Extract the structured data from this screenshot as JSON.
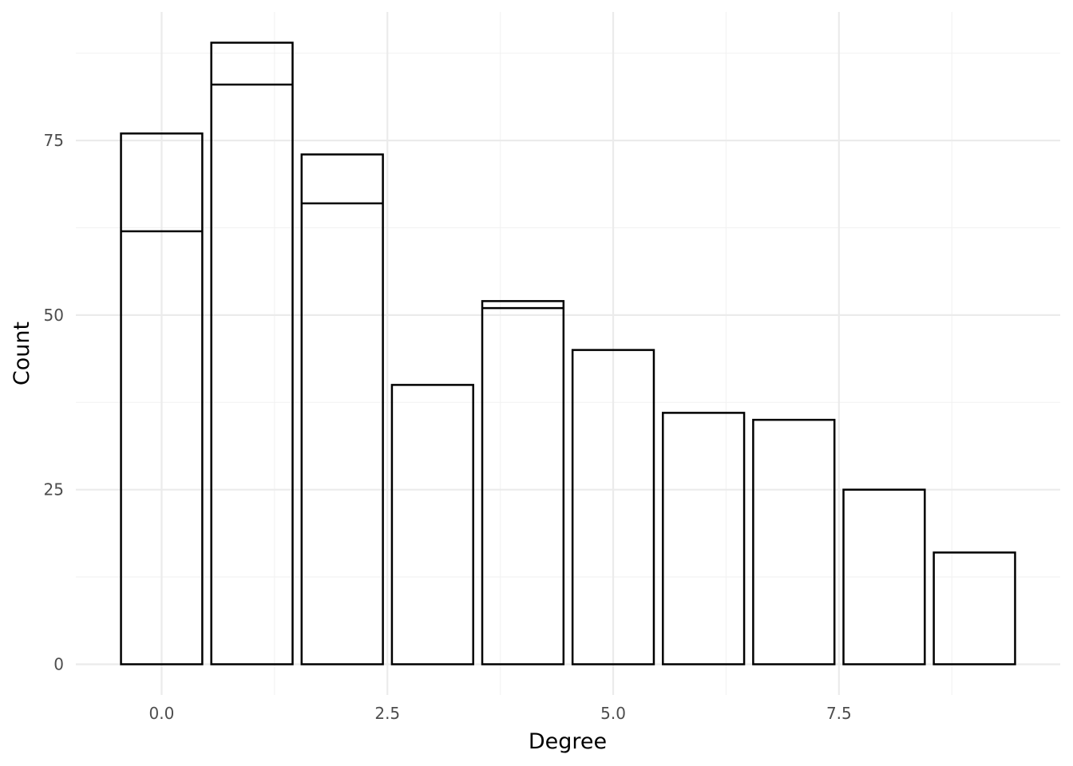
{
  "chart_data": {
    "type": "bar",
    "xlabel": "Degree",
    "ylabel": "Count",
    "xlim": [
      -0.95,
      9.95
    ],
    "ylim": [
      -4.4,
      93.4
    ],
    "x_ticks": [
      {
        "value": 0,
        "label": "0.0"
      },
      {
        "value": 2.5,
        "label": "2.5"
      },
      {
        "value": 5,
        "label": "5.0"
      },
      {
        "value": 7.5,
        "label": "7.5"
      }
    ],
    "y_ticks": [
      {
        "value": 0,
        "label": "0"
      },
      {
        "value": 25,
        "label": "25"
      },
      {
        "value": 50,
        "label": "50"
      },
      {
        "value": 75,
        "label": "75"
      }
    ],
    "bars": [
      {
        "x": 0,
        "segments": [
          62,
          14
        ]
      },
      {
        "x": 1,
        "segments": [
          83,
          6
        ]
      },
      {
        "x": 2,
        "segments": [
          66,
          7
        ]
      },
      {
        "x": 3,
        "segments": [
          40
        ]
      },
      {
        "x": 4,
        "segments": [
          51,
          1
        ]
      },
      {
        "x": 5,
        "segments": [
          45
        ]
      },
      {
        "x": 6,
        "segments": [
          36
        ]
      },
      {
        "x": 7,
        "segments": [
          35
        ]
      },
      {
        "x": 8,
        "segments": [
          25
        ]
      },
      {
        "x": 9,
        "segments": [
          16
        ]
      }
    ],
    "bar_width": 0.9,
    "grid": true,
    "legend": "none"
  }
}
